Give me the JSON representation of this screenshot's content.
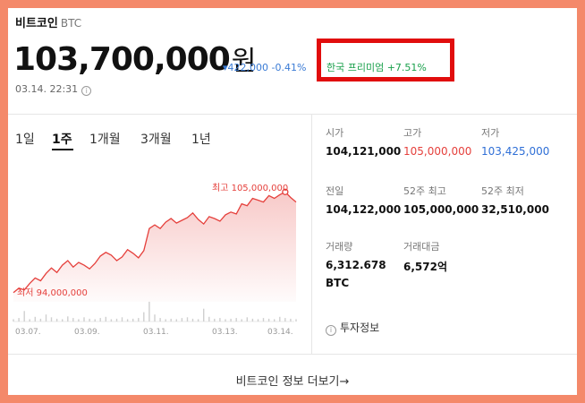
{
  "header": {
    "name": "비트코인",
    "ticker": "BTC",
    "price": "103,700,000",
    "currency": "원",
    "change": "▾422,000 -0.41%",
    "premium": "한국 프리미엄 +7.51%",
    "timestamp": "03.14. 22:31",
    "info_icon": "i"
  },
  "tabs": [
    "1일",
    "1주",
    "1개월",
    "3개월",
    "1년"
  ],
  "active_tab": "1주",
  "chart": {
    "max_label": "최고 105,000,000",
    "min_label": "최저 94,000,000",
    "x_ticks": [
      "03.07.",
      "03.09.",
      "03.11.",
      "03.13.",
      "03.14."
    ],
    "line_color": "#e5403c"
  },
  "chart_data": {
    "type": "area",
    "title": "",
    "max": 105000000,
    "min": 94000000,
    "ylim": [
      93000000,
      106500000
    ],
    "x_tick_labels": [
      "03.07.",
      "03.09.",
      "03.11.",
      "03.13.",
      "03.14."
    ],
    "series": [
      {
        "values": [
          94000000,
          94500000,
          94300000,
          95000000,
          95600000,
          95300000,
          96100000,
          96700000,
          96200000,
          97000000,
          97500000,
          96800000,
          97300000,
          97000000,
          96600000,
          97200000,
          98000000,
          98400000,
          98100000,
          97500000,
          97900000,
          98700000,
          98300000,
          97800000,
          98600000,
          101000000,
          101400000,
          101000000,
          101700000,
          102100000,
          101600000,
          101900000,
          102200000,
          102700000,
          102000000,
          101500000,
          102300000,
          102100000,
          101800000,
          102500000,
          102800000,
          102600000,
          103700000,
          103500000,
          104300000,
          104100000,
          103900000,
          104600000,
          104300000,
          104700000,
          105000000,
          104400000,
          103900000
        ]
      },
      {
        "values": [
          0.1,
          0.15,
          0.45,
          0.1,
          0.2,
          0.12,
          0.3,
          0.18,
          0.12,
          0.1,
          0.22,
          0.15,
          0.1,
          0.18,
          0.12,
          0.1,
          0.15,
          0.2,
          0.1,
          0.12,
          0.18,
          0.1,
          0.12,
          0.15,
          0.4,
          0.85,
          0.3,
          0.15,
          0.1,
          0.12,
          0.1,
          0.15,
          0.18,
          0.12,
          0.1,
          0.55,
          0.2,
          0.12,
          0.15,
          0.1,
          0.12,
          0.15,
          0.1,
          0.18,
          0.12,
          0.1,
          0.15,
          0.12,
          0.1,
          0.2,
          0.15,
          0.12,
          0.1
        ]
      }
    ]
  },
  "stats": [
    {
      "label": "시가",
      "value": "104,121,000",
      "color": "default"
    },
    {
      "label": "고가",
      "value": "105,000,000",
      "color": "red"
    },
    {
      "label": "저가",
      "value": "103,425,000",
      "color": "blue"
    },
    {
      "label": "전일",
      "value": "104,122,000",
      "color": "default"
    },
    {
      "label": "52주 최고",
      "value": "105,000,000",
      "color": "default"
    },
    {
      "label": "52주 최저",
      "value": "32,510,000",
      "color": "default"
    },
    {
      "label": "거래량",
      "value": "6,312.678",
      "unit": "BTC",
      "color": "default"
    },
    {
      "label": "거래대금",
      "value": "6,572억",
      "color": "default"
    }
  ],
  "invest_info": {
    "icon": "i",
    "label": "투자정보"
  },
  "footer": {
    "link": "비트코인 정보 더보기→"
  }
}
